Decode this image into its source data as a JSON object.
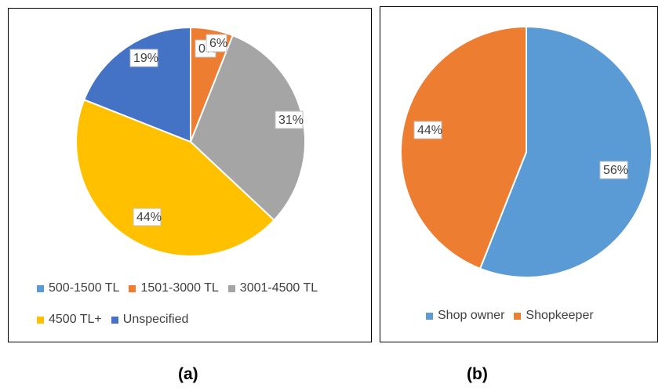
{
  "chart_data": [
    {
      "type": "pie",
      "categories": [
        "500-1500 TL",
        "1501-3000 TL",
        "3001-4500 TL",
        "4500 TL+",
        "Unspecified"
      ],
      "values": [
        0,
        6,
        31,
        44,
        19
      ],
      "labels": [
        "0%",
        "6%",
        "31%",
        "44%",
        "19%"
      ],
      "colors": [
        "#5B9BD5",
        "#ED7D31",
        "#A5A5A5",
        "#FFC000",
        "#4472C4"
      ],
      "legend_position": "bottom",
      "caption": "(a)"
    },
    {
      "type": "pie",
      "categories": [
        "Shop owner",
        "Shopkeeper"
      ],
      "values": [
        56,
        44
      ],
      "labels": [
        "56%",
        "44%"
      ],
      "colors": [
        "#5B9BD5",
        "#ED7D31"
      ],
      "legend_position": "bottom",
      "caption": "(b)"
    }
  ]
}
